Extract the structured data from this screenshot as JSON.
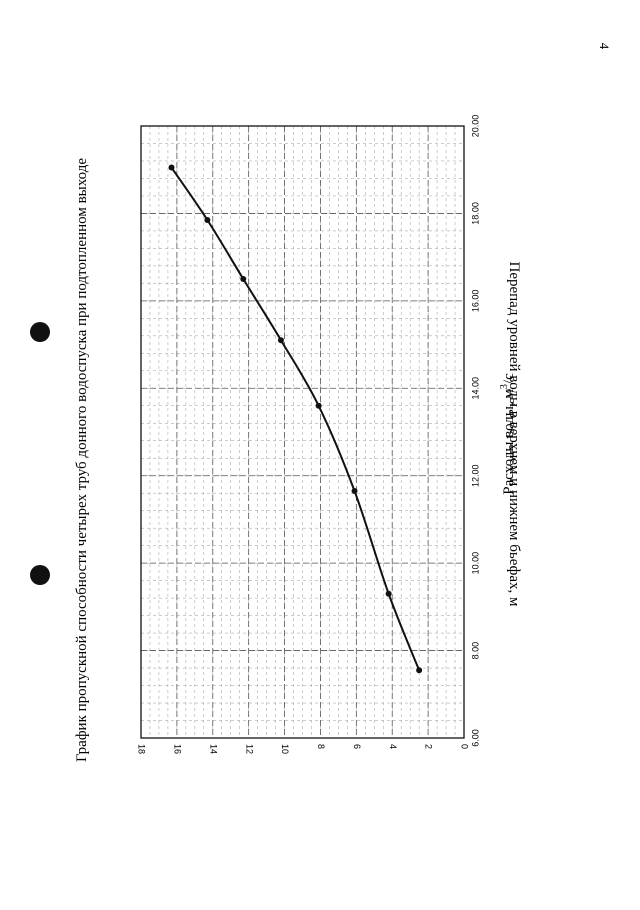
{
  "page": {
    "number": "4",
    "title": "График пропускной способности четырех труб донного водоспуска при подтопленном выходе"
  },
  "marks": {
    "hole_color": "#111111"
  },
  "chart_data": {
    "type": "line",
    "title": "",
    "xlabel": "Расходы воды, м",
    "xlabel_sup": "3",
    "xlabel_unit": "/c",
    "ylabel": "Перепад уровней воды в верхнем и нижнем бьефах, м",
    "xlim": [
      6,
      20
    ],
    "ylim": [
      0,
      18
    ],
    "x_ticks": [
      "6.00",
      "8.00",
      "10.00",
      "12.00",
      "14.00",
      "16.00",
      "18.00",
      "20.00"
    ],
    "y_ticks": [
      "0",
      "2",
      "4",
      "6",
      "8",
      "10",
      "12",
      "14",
      "16",
      "18"
    ],
    "grid": true,
    "line_color": "#111111",
    "series": [
      {
        "x": [
          7.55,
          9.3,
          11.65,
          13.6,
          15.1,
          16.5,
          17.85,
          19.05
        ],
        "y": [
          2.5,
          4.2,
          6.1,
          8.1,
          10.2,
          12.3,
          14.3,
          16.3
        ]
      }
    ]
  }
}
